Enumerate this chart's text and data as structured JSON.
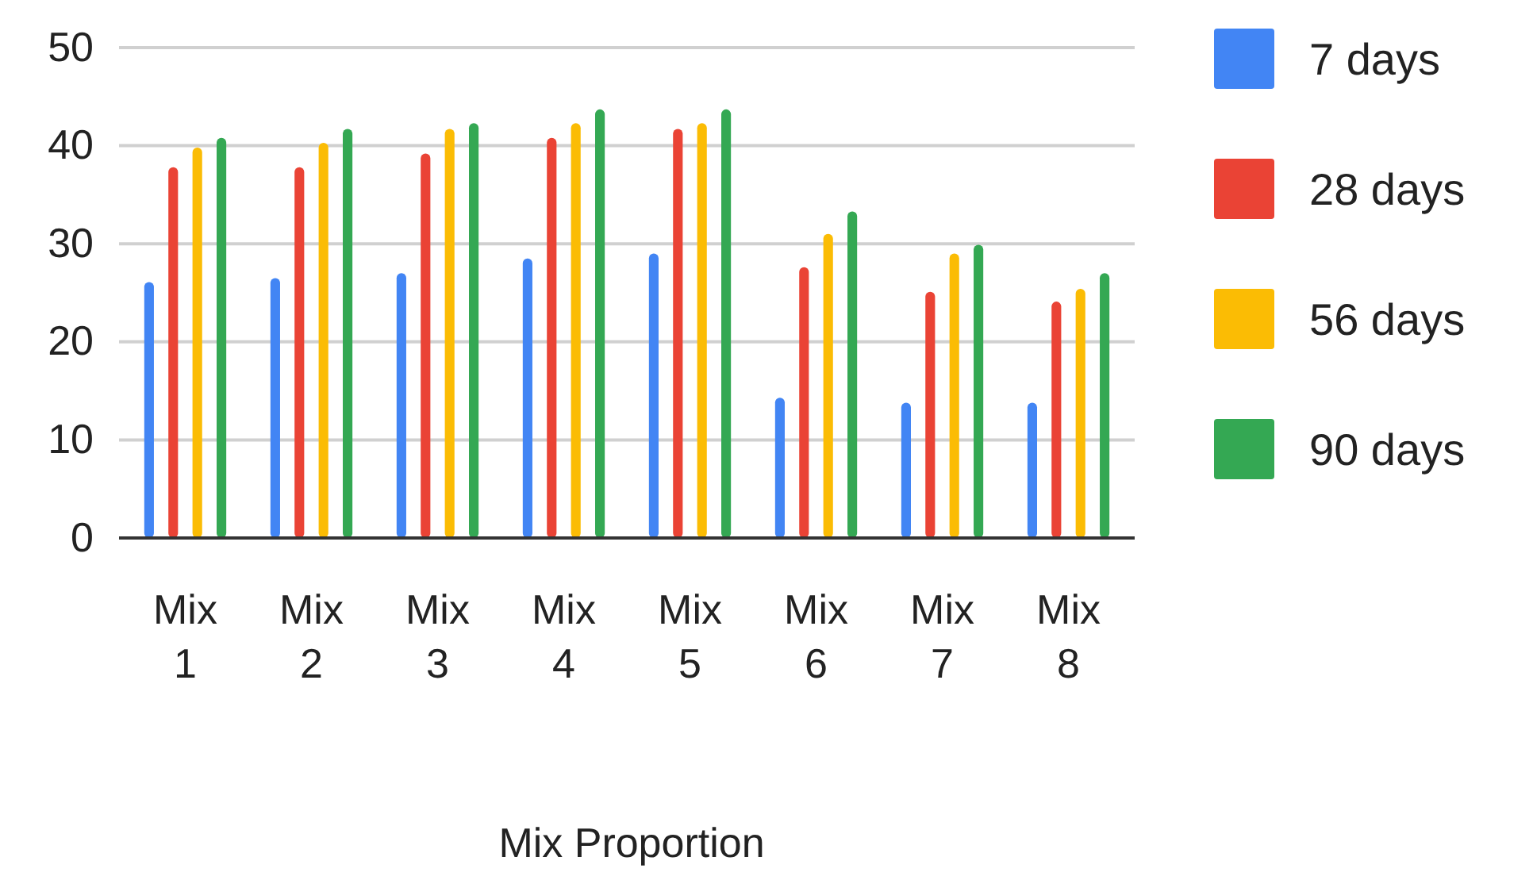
{
  "chart_data": {
    "type": "bar",
    "xlabel": "Mix Proportion",
    "categories": [
      "Mix 1",
      "Mix 2",
      "Mix 3",
      "Mix 4",
      "Mix 5",
      "Mix 6",
      "Mix 7",
      "Mix 8"
    ],
    "series": [
      {
        "name": "7 days",
        "color": "#4285f4",
        "values": [
          26.1,
          26.5,
          27.0,
          28.5,
          29.0,
          14.3,
          13.8,
          13.8
        ]
      },
      {
        "name": "28 days",
        "color": "#ea4335",
        "values": [
          37.8,
          37.8,
          39.2,
          40.8,
          41.7,
          27.6,
          25.1,
          24.1
        ]
      },
      {
        "name": "56 days",
        "color": "#fbbc04",
        "values": [
          39.8,
          40.3,
          41.7,
          42.3,
          42.3,
          31.0,
          29.0,
          25.4
        ]
      },
      {
        "name": "90 days",
        "color": "#34a853",
        "values": [
          40.8,
          41.7,
          42.3,
          43.7,
          43.7,
          33.3,
          29.9,
          27.0
        ]
      }
    ],
    "ylim": [
      0,
      50
    ],
    "yticks": [
      0,
      10,
      20,
      30,
      40,
      50
    ],
    "grid": "y",
    "legend": "right"
  }
}
